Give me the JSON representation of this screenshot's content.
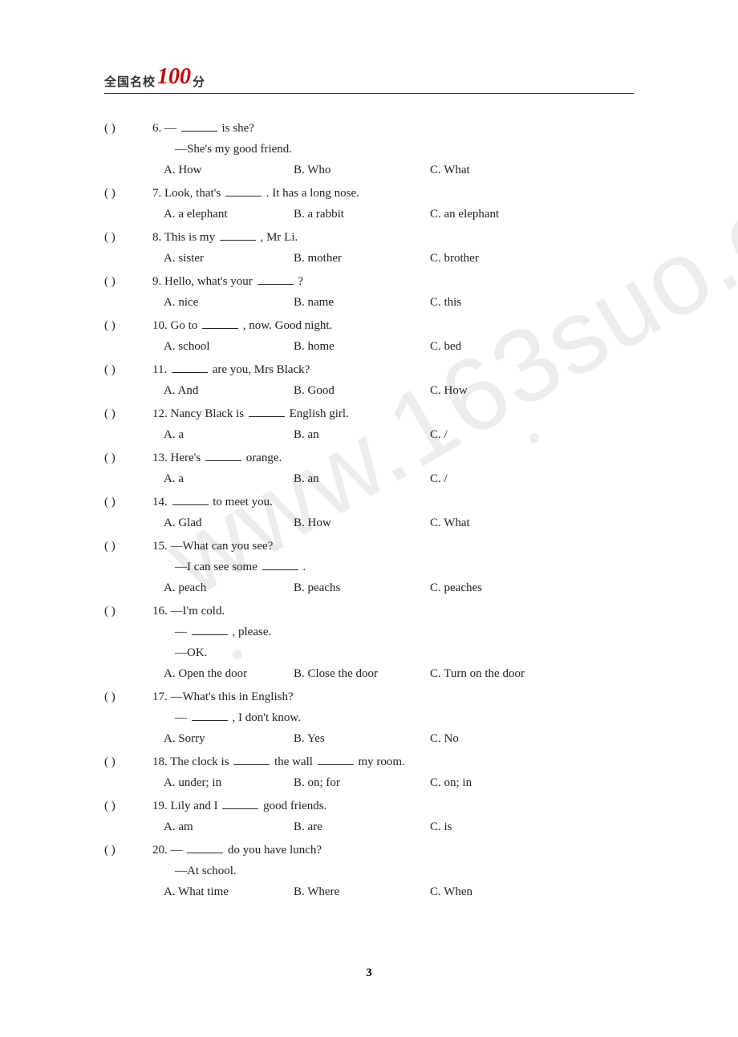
{
  "header": {
    "prefix": "全国名校",
    "highlight": "100",
    "suffix": "分"
  },
  "pageNumber": "3",
  "questions": [
    {
      "num": "6.",
      "paren": "(        )",
      "stem": "— ______ is she?",
      "subs": [
        "—She's my good friend."
      ],
      "opts": {
        "a": "A. How",
        "b": "B. Who",
        "c": "C. What"
      }
    },
    {
      "num": "7.",
      "paren": "(        )",
      "stem": "Look, that's ______ . It has a long nose.",
      "subs": [],
      "opts": {
        "a": "A. a elephant",
        "b": "B. a rabbit",
        "c": "C. an elephant"
      }
    },
    {
      "num": "8.",
      "paren": "(        )",
      "stem": "This is my ______ , Mr Li.",
      "subs": [],
      "opts": {
        "a": "A. sister",
        "b": "B. mother",
        "c": "C. brother"
      }
    },
    {
      "num": "9.",
      "paren": "(        )",
      "stem": "Hello, what's your ______ ?",
      "subs": [],
      "opts": {
        "a": "A. nice",
        "b": "B. name",
        "c": "C. this"
      }
    },
    {
      "num": "10.",
      "paren": "(        )",
      "stem": "Go to ______ , now. Good night.",
      "subs": [],
      "opts": {
        "a": "A. school",
        "b": "B. home",
        "c": "C. bed"
      }
    },
    {
      "num": "11.",
      "paren": "(        )",
      "stem": "______ are you, Mrs Black?",
      "subs": [],
      "opts": {
        "a": "A. And",
        "b": "B. Good",
        "c": "C. How"
      }
    },
    {
      "num": "12.",
      "paren": "(        )",
      "stem": "Nancy Black is ______ English girl.",
      "subs": [],
      "opts": {
        "a": "A. a",
        "b": "B. an",
        "c": "C. /"
      }
    },
    {
      "num": "13.",
      "paren": "(        )",
      "stem": "Here's ______ orange.",
      "subs": [],
      "opts": {
        "a": "A. a",
        "b": "B. an",
        "c": "C. /"
      }
    },
    {
      "num": "14.",
      "paren": "(        )",
      "stem": "______ to meet you.",
      "subs": [],
      "opts": {
        "a": "A. Glad",
        "b": "B. How",
        "c": "C. What"
      }
    },
    {
      "num": "15.",
      "paren": "(        )",
      "stem": "—What can you see?",
      "subs": [
        "—I can see some ______ ."
      ],
      "opts": {
        "a": "A. peach",
        "b": "B. peachs",
        "c": "C. peaches"
      }
    },
    {
      "num": "16.",
      "paren": "(        )",
      "stem": "—I'm cold.",
      "subs": [
        "— ______ , please.",
        "—OK."
      ],
      "opts": {
        "a": "A. Open the door",
        "b": "B. Close the door",
        "c": "C. Turn on the door"
      }
    },
    {
      "num": "17.",
      "paren": "(        )",
      "stem": "—What's this in English?",
      "subs": [
        "— ______ , I don't know."
      ],
      "opts": {
        "a": "A. Sorry",
        "b": "B. Yes",
        "c": "C. No"
      }
    },
    {
      "num": "18.",
      "paren": "(        )",
      "stem": "The clock is ______ the wall ______ my room.",
      "subs": [],
      "opts": {
        "a": "A. under; in",
        "b": "B. on; for",
        "c": "C. on; in"
      }
    },
    {
      "num": "19.",
      "paren": "(        )",
      "stem": "Lily and I ______ good friends.",
      "subs": [],
      "opts": {
        "a": "A. am",
        "b": "B. are",
        "c": "C. is"
      }
    },
    {
      "num": "20.",
      "paren": "(        )",
      "stem": "— ______ do you have lunch?",
      "subs": [
        "—At school."
      ],
      "opts": {
        "a": "A. What time",
        "b": "B. Where",
        "c": "C. When"
      }
    }
  ]
}
